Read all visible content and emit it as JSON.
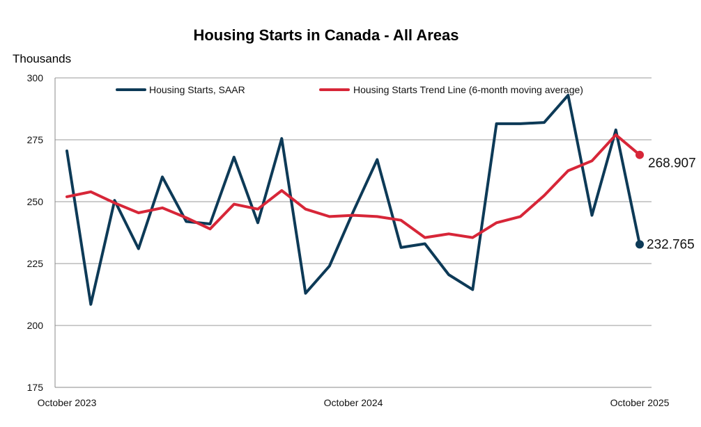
{
  "chart_data": {
    "type": "line",
    "title": "Housing Starts in Canada - All Areas",
    "ylabel": "Thousands",
    "xlabel": "",
    "ylim": [
      175,
      300
    ],
    "yticks": [
      175,
      200,
      225,
      250,
      275,
      300
    ],
    "grid": true,
    "legend_position": "top",
    "x": [
      "2023-10",
      "2023-11",
      "2023-12",
      "2024-01",
      "2024-02",
      "2024-03",
      "2024-04",
      "2024-05",
      "2024-06",
      "2024-07",
      "2024-08",
      "2024-09",
      "2024-10",
      "2024-11",
      "2024-12",
      "2025-01",
      "2025-02",
      "2025-03",
      "2025-04",
      "2025-05",
      "2025-06",
      "2025-07",
      "2025-08",
      "2025-09",
      "2025-10"
    ],
    "xtick_labels": [
      {
        "index": 0,
        "label": "October 2023"
      },
      {
        "index": 12,
        "label": "October 2024"
      },
      {
        "index": 24,
        "label": "October 2025"
      }
    ],
    "series": [
      {
        "name": "Housing Starts, SAAR",
        "color": "#0d3a57",
        "values": [
          270.5,
          208.5,
          250.5,
          231.0,
          260.0,
          242.0,
          241.0,
          268.0,
          241.5,
          275.5,
          213.0,
          224.0,
          246.0,
          267.0,
          231.5,
          233.0,
          220.5,
          214.5,
          281.5,
          281.5,
          282.0,
          293.0,
          244.5,
          279.0,
          232.765
        ],
        "end_label": "232.765"
      },
      {
        "name": "Housing Starts Trend Line (6-month moving average)",
        "color": "#d72638",
        "values": [
          252.0,
          254.0,
          249.5,
          245.5,
          247.5,
          243.5,
          239.0,
          249.0,
          247.0,
          254.5,
          247.0,
          244.0,
          244.5,
          244.0,
          242.5,
          235.5,
          237.0,
          235.5,
          241.5,
          244.0,
          252.5,
          262.5,
          266.5,
          277.0,
          268.907
        ],
        "end_label": "268.907"
      }
    ]
  }
}
